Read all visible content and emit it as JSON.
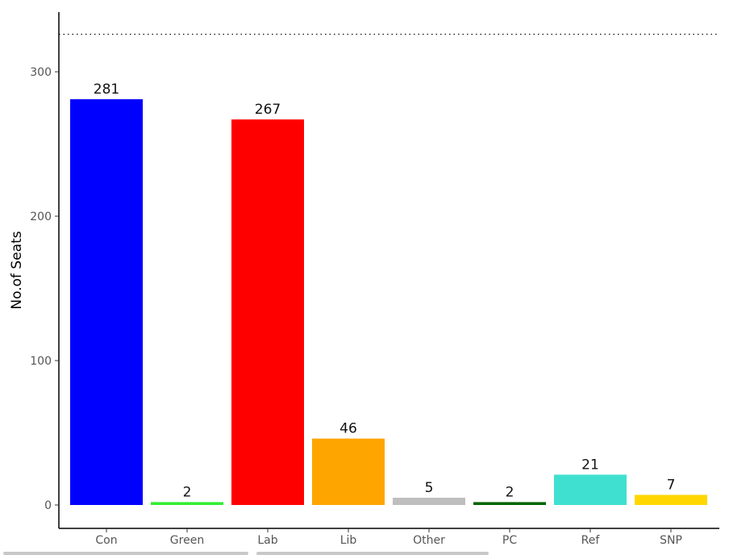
{
  "chart_data": {
    "type": "bar",
    "categories": [
      "Con",
      "Green",
      "Lab",
      "Lib",
      "Other",
      "PC",
      "Ref",
      "SNP"
    ],
    "values": [
      281,
      2,
      267,
      46,
      5,
      2,
      21,
      7
    ],
    "colors": [
      "#0000ff",
      "#33ee33",
      "#ff0000",
      "#ffa500",
      "#bebebe",
      "#006400",
      "#40e0d0",
      "#ffd700"
    ],
    "data_labels": [
      "281",
      "2",
      "267",
      "46",
      "5",
      "2",
      "21",
      "7"
    ],
    "ylabel": "No.of Seats",
    "xlabel": "",
    "yticks": [
      0,
      100,
      200,
      300
    ],
    "ytick_labels": [
      "0",
      "100",
      "200",
      "300"
    ],
    "ylim": [
      -16.6,
      342
    ],
    "reference_line": {
      "value": 326,
      "style": "dotted"
    },
    "grid": false,
    "legend": "none"
  }
}
